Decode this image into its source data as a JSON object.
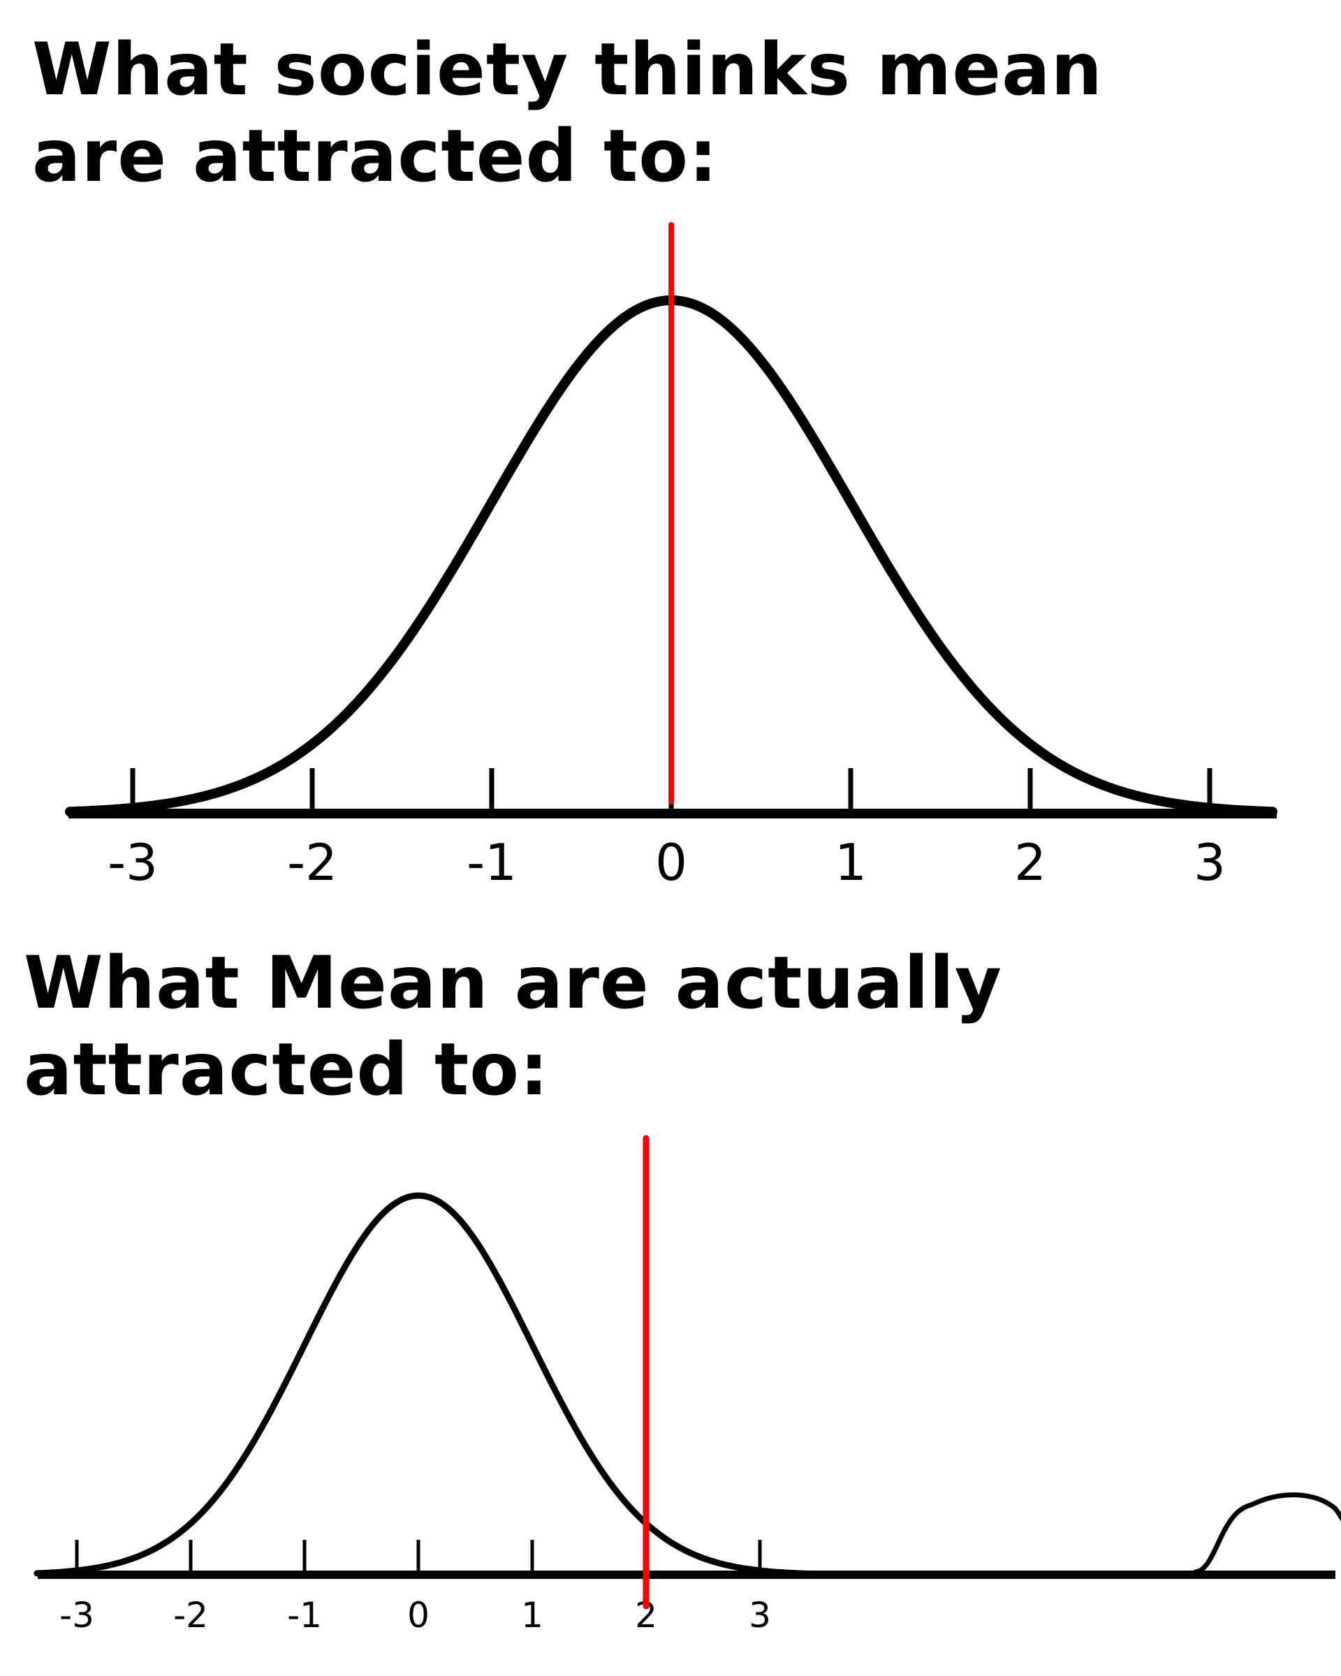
{
  "headings": {
    "top": "What society thinks mean are attracted to:",
    "bottom": "What Mean are actually attracted to:"
  },
  "chart_data": [
    {
      "type": "line",
      "title": "What society thinks mean are attracted to:",
      "xlabel": "",
      "ylabel": "",
      "xlim": [
        -3.35,
        3.35
      ],
      "x_ticks": [
        -3,
        -2,
        -1,
        0,
        1,
        2,
        3
      ],
      "tick_labels": [
        "-3",
        "-2",
        "-1",
        "0",
        "1",
        "2",
        "3"
      ],
      "curve": "normal distribution, mean 0, sd 1",
      "mean": 0,
      "sd": 1,
      "marker_line_x": 0,
      "grid": false,
      "colors": {
        "curve": "#000000",
        "marker_line": "#ff0000"
      }
    },
    {
      "type": "line",
      "title": "What Mean are actually attracted to:",
      "xlabel": "",
      "ylabel": "",
      "xlim": [
        -3.35,
        8.1
      ],
      "x_ticks": [
        -3,
        -2,
        -1,
        0,
        1,
        2,
        3
      ],
      "tick_labels": [
        "-3",
        "-2",
        "-1",
        "0",
        "1",
        "2",
        "3"
      ],
      "curve": "normal distribution, mean 0, sd 1, plus a small hand-drawn bump near x = 7.5",
      "mean": 0,
      "sd": 1,
      "marker_line_x": 2,
      "grid": false,
      "colors": {
        "curve": "#000000",
        "marker_line": "#ff0000"
      }
    }
  ]
}
